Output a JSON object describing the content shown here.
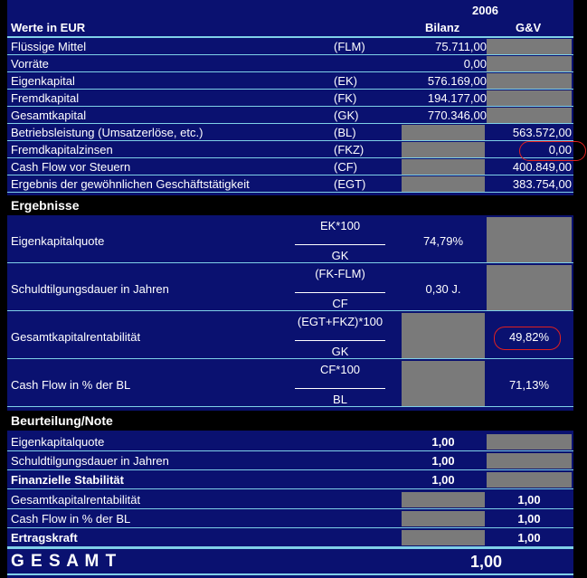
{
  "year": "2006",
  "header": {
    "title": "Werte in EUR",
    "col_bilanz": "Bilanz",
    "col_guv": "G&V"
  },
  "inputs": [
    {
      "label": "Flüssige Mittel",
      "abbr": "(FLM)",
      "bilanz": "75.711,00",
      "guv": ""
    },
    {
      "label": "Vorräte",
      "abbr": "",
      "bilanz": "0,00",
      "guv": ""
    },
    {
      "label": "Eigenkapital",
      "abbr": "(EK)",
      "bilanz": "576.169,00",
      "guv": ""
    },
    {
      "label": "Fremdkapital",
      "abbr": "(FK)",
      "bilanz": "194.177,00",
      "guv": ""
    },
    {
      "label": "Gesamtkapital",
      "abbr": "(GK)",
      "bilanz": "770.346,00",
      "guv": ""
    },
    {
      "label": "Betriebsleistung (Umsatzerlöse, etc.)",
      "abbr": "(BL)",
      "bilanz": "",
      "guv": "563.572,00"
    },
    {
      "label": "Fremdkapitalzinsen",
      "abbr": "(FKZ)",
      "bilanz": "",
      "guv": "0,00"
    },
    {
      "label": "Cash Flow vor Steuern",
      "abbr": "(CF)",
      "bilanz": "",
      "guv": "400.849,00"
    },
    {
      "label": "Ergebnis der gewöhnlichen Geschäftstätigkeit",
      "abbr": "(EGT)",
      "bilanz": "",
      "guv": "383.754,00"
    }
  ],
  "ergebnisse": {
    "title": "Ergebnisse",
    "rows": [
      {
        "label": "Eigenkapitalquote",
        "num": "EK*100",
        "den": "GK",
        "bilanz": "74,79%",
        "guv": ""
      },
      {
        "label": "Schuldtilgungsdauer in Jahren",
        "num": "(FK-FLM)",
        "den": "CF",
        "bilanz": "0,30 J.",
        "guv": ""
      },
      {
        "label": "Gesamtkapitalrentabilität",
        "num": "(EGT+FKZ)*100",
        "den": "GK",
        "bilanz": "",
        "guv": "49,82%"
      },
      {
        "label": "Cash Flow in % der BL",
        "num": "CF*100",
        "den": "BL",
        "bilanz": "",
        "guv": "71,13%"
      }
    ]
  },
  "beurteilung": {
    "title": "Beurteilung/Note",
    "rows": [
      {
        "label": "Eigenkapitalquote",
        "bilanz": "1,00",
        "guv": ""
      },
      {
        "label": "Schuldtilgungsdauer in Jahren",
        "bilanz": "1,00",
        "guv": ""
      },
      {
        "label": "Finanzielle Stabilität",
        "bilanz": "1,00",
        "guv": ""
      },
      {
        "label": "Gesamtkapitalrentabilität",
        "bilanz": "",
        "guv": "1,00"
      },
      {
        "label": "Cash Flow in % der BL",
        "bilanz": "",
        "guv": "1,00"
      },
      {
        "label": "Ertragskraft",
        "bilanz": "",
        "guv": "1,00"
      }
    ]
  },
  "gesamt": {
    "label": "G E S A M T",
    "value": "1,00"
  },
  "colors": {
    "background": "#0a1170",
    "gray_cell": "#7a7a7a",
    "grid_line": "#7fd0e8",
    "highlight": "#e02020"
  }
}
